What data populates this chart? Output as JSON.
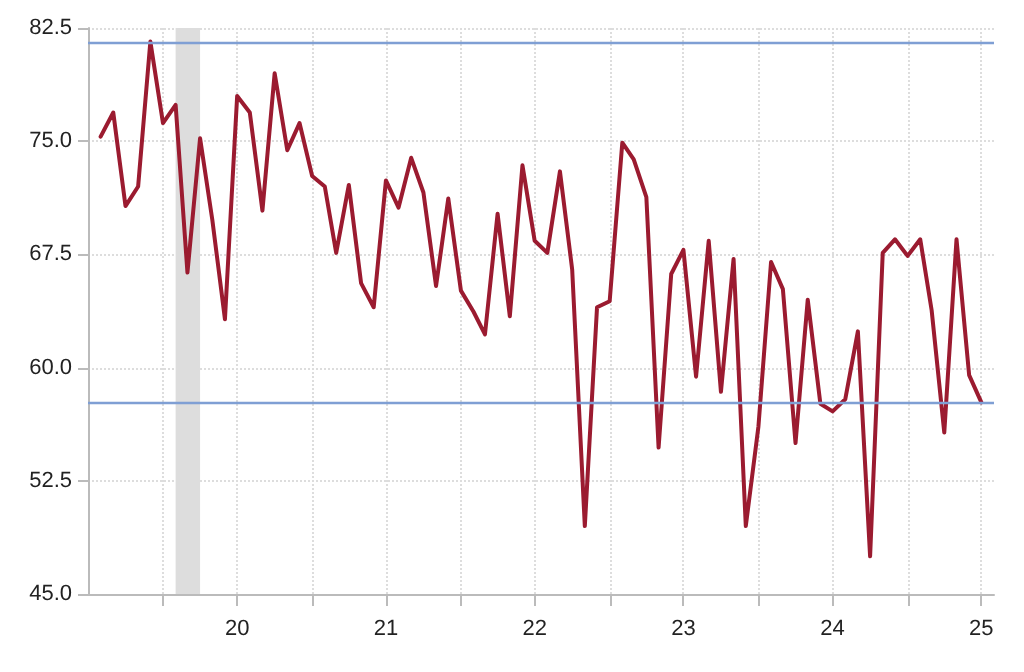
{
  "chart_data": {
    "type": "line",
    "x": [
      "2019-08",
      "2019-09",
      "2019-10",
      "2019-11",
      "2019-12",
      "2020-01",
      "2020-02",
      "2020-03",
      "2020-04",
      "2020-05",
      "2020-06",
      "2020-07",
      "2020-08",
      "2020-09",
      "2020-10",
      "2020-11",
      "2020-12",
      "2021-01",
      "2021-02",
      "2021-03",
      "2021-04",
      "2021-05",
      "2021-06",
      "2021-07",
      "2021-08",
      "2021-09",
      "2021-10",
      "2021-11",
      "2021-12",
      "2022-01",
      "2022-02",
      "2022-03",
      "2022-04",
      "2022-05",
      "2022-06",
      "2022-07",
      "2022-08",
      "2022-09",
      "2022-10",
      "2022-11",
      "2022-12",
      "2023-01",
      "2023-02",
      "2023-03",
      "2023-04",
      "2023-05",
      "2023-06",
      "2023-07",
      "2023-08",
      "2023-09",
      "2023-10",
      "2023-11",
      "2023-12",
      "2024-01",
      "2024-02",
      "2024-03",
      "2024-04",
      "2024-05",
      "2024-06",
      "2024-07",
      "2024-08",
      "2024-09",
      "2024-10",
      "2024-11",
      "2024-12",
      "2025-01",
      "2025-02",
      "2025-03",
      "2025-04",
      "2025-05",
      "2025-06",
      "2025-07"
    ],
    "series": [
      {
        "color": "#9b1b30",
        "values": [
          75.3,
          76.9,
          70.7,
          72.0,
          81.6,
          76.2,
          77.4,
          66.3,
          75.2,
          69.8,
          63.2,
          78.0,
          76.9,
          70.4,
          79.5,
          74.4,
          76.2,
          72.7,
          72.0,
          67.6,
          72.1,
          65.6,
          64.0,
          72.4,
          70.6,
          73.9,
          71.6,
          65.4,
          71.2,
          65.1,
          63.7,
          62.2,
          70.2,
          63.4,
          73.4,
          68.4,
          67.6,
          73.0,
          66.5,
          49.5,
          64.0,
          64.4,
          74.9,
          73.8,
          71.3,
          54.7,
          66.2,
          67.8,
          59.4,
          68.4,
          58.4,
          67.2,
          49.5,
          56.1,
          67.0,
          65.2,
          55.0,
          64.5,
          57.6,
          57.1,
          57.9,
          62.4,
          47.5,
          67.6,
          68.5,
          67.4,
          68.5,
          63.8,
          55.7,
          68.5,
          59.5,
          57.7
        ]
      }
    ],
    "xlim": [
      "2019-07",
      "2025-08"
    ],
    "xticks": [
      {
        "value": "2020-01",
        "label": null
      },
      {
        "value": "2020-07",
        "label": "20"
      },
      {
        "value": "2021-01",
        "label": null
      },
      {
        "value": "2021-07",
        "label": "21"
      },
      {
        "value": "2022-01",
        "label": null
      },
      {
        "value": "2022-07",
        "label": "22"
      },
      {
        "value": "2023-01",
        "label": null
      },
      {
        "value": "2023-07",
        "label": "23"
      },
      {
        "value": "2024-01",
        "label": null
      },
      {
        "value": "2024-07",
        "label": "24"
      },
      {
        "value": "2025-01",
        "label": null
      },
      {
        "value": "2025-07",
        "label": "25"
      }
    ],
    "ylim": [
      45,
      82.5
    ],
    "yticks": [
      {
        "value": 45,
        "label": "45.0"
      },
      {
        "value": 52.5,
        "label": "52.5"
      },
      {
        "value": 60,
        "label": "60.0"
      },
      {
        "value": 67.5,
        "label": "67.5"
      },
      {
        "value": 75,
        "label": "75.0"
      },
      {
        "value": 82.5,
        "label": "82.5"
      }
    ],
    "grid": true,
    "marker": "none",
    "line_style": "solid",
    "ref_lines": [
      {
        "axis": "y",
        "value": 81.6,
        "color": "#7f9fd4"
      },
      {
        "axis": "y",
        "value": 57.7,
        "color": "#7f9fd4"
      }
    ],
    "bands": [
      {
        "axis": "x",
        "from": "2020-02",
        "to": "2020-04",
        "color": "#dddddd"
      }
    ]
  }
}
